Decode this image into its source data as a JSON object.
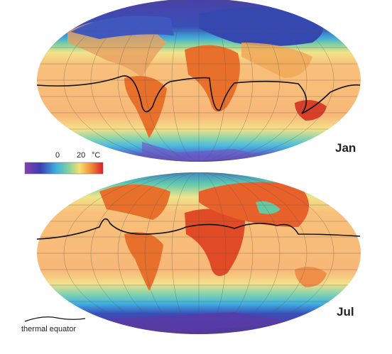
{
  "maps": [
    {
      "label": "Jan"
    },
    {
      "label": "Jul"
    }
  ],
  "legend": {
    "ticks": [
      "0",
      "20"
    ],
    "unit": "°C"
  },
  "note": "thermal equator"
}
